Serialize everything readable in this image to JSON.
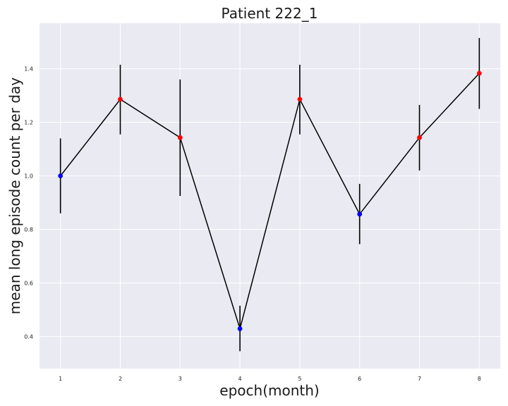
{
  "chart_data": {
    "type": "line",
    "title": "Patient 222_1",
    "xlabel": "epoch(month)",
    "ylabel": "mean long episode count per day",
    "x": [
      1,
      2,
      3,
      4,
      5,
      6,
      7,
      8
    ],
    "xticks": [
      "1",
      "2",
      "3",
      "4",
      "5",
      "6",
      "7",
      "8"
    ],
    "yticks": [
      "0.4",
      "0.6",
      "0.8",
      "1.0",
      "1.2",
      "1.4"
    ],
    "xlim": [
      0.65,
      8.35
    ],
    "ylim": [
      0.28,
      1.57
    ],
    "grid": true,
    "series": [
      {
        "values": [
          1.0,
          1.286,
          1.143,
          0.429,
          1.286,
          0.857,
          1.143,
          1.383
        ],
        "error_low": [
          0.86,
          1.155,
          0.925,
          0.345,
          1.155,
          0.745,
          1.02,
          1.25
        ],
        "error_high": [
          1.14,
          1.415,
          1.36,
          0.515,
          1.415,
          0.97,
          1.265,
          1.515
        ],
        "marker_colors": [
          "#0000ff",
          "#ff0000",
          "#ff0000",
          "#0000ff",
          "#ff0000",
          "#0000ff",
          "#ff0000",
          "#ff0000"
        ],
        "line_color": "#000000",
        "error_color": "#000000"
      }
    ]
  },
  "colors": {
    "plot_background": "#EAEAF2",
    "grid": "#ffffff",
    "point_below": "#0000ff",
    "point_above": "#ff0000"
  }
}
